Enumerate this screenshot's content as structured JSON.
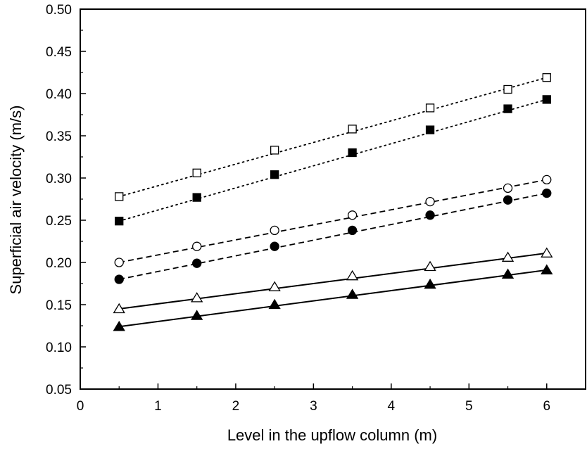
{
  "chart_data": {
    "type": "scatter",
    "xlabel": "Level in the upflow column (m)",
    "ylabel": "Superficial air velocity (m/s)",
    "xlim": [
      0,
      6.5
    ],
    "ylim": [
      0.05,
      0.5
    ],
    "grid": false,
    "legend": "none",
    "x_ticks": [
      0,
      1,
      2,
      3,
      4,
      5,
      6
    ],
    "y_ticks": [
      0.05,
      0.1,
      0.15,
      0.2,
      0.25,
      0.3,
      0.35,
      0.4,
      0.45,
      0.5
    ],
    "x_tick_labels": [
      "0",
      "1",
      "2",
      "3",
      "4",
      "5",
      "6"
    ],
    "y_tick_labels": [
      "0.05",
      "0.10",
      "0.15",
      "0.20",
      "0.25",
      "0.30",
      "0.35",
      "0.40",
      "0.45",
      "0.50"
    ],
    "x": [
      0.5,
      1.5,
      2.5,
      3.5,
      4.5,
      5.5,
      6.0
    ],
    "series": [
      {
        "marker": "open-square",
        "line": "dotted",
        "values": [
          0.278,
          0.306,
          0.333,
          0.358,
          0.383,
          0.405,
          0.419
        ]
      },
      {
        "marker": "filled-square",
        "line": "dotted",
        "values": [
          0.249,
          0.277,
          0.304,
          0.33,
          0.357,
          0.382,
          0.393
        ]
      },
      {
        "marker": "open-circle",
        "line": "dashed",
        "values": [
          0.2,
          0.219,
          0.238,
          0.256,
          0.272,
          0.288,
          0.298
        ]
      },
      {
        "marker": "filled-circle",
        "line": "dashed",
        "values": [
          0.18,
          0.199,
          0.219,
          0.238,
          0.256,
          0.274,
          0.282
        ]
      },
      {
        "marker": "open-triangle",
        "line": "solid",
        "values": [
          0.145,
          0.158,
          0.171,
          0.184,
          0.195,
          0.206,
          0.211
        ]
      },
      {
        "marker": "filled-triangle",
        "line": "solid",
        "values": [
          0.124,
          0.137,
          0.15,
          0.162,
          0.174,
          0.186,
          0.191
        ]
      }
    ],
    "colors": {
      "ink": "#000000",
      "background": "#ffffff"
    }
  }
}
